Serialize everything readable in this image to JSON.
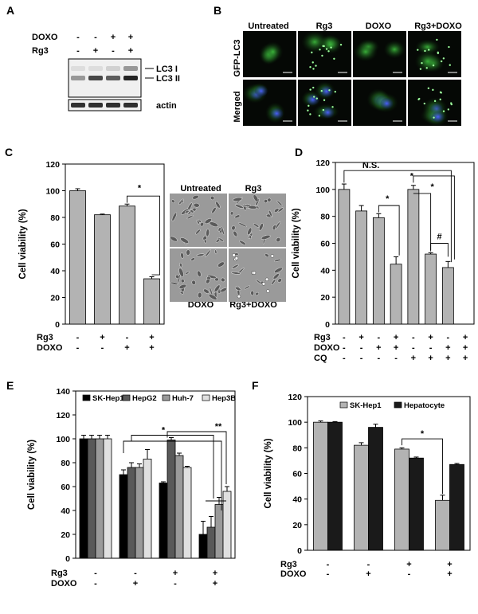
{
  "panels": {
    "A": {
      "letter": "A",
      "row_labels": [
        "DOXO",
        "Rg3"
      ],
      "treatments": [
        {
          "DOXO": "-",
          "Rg3": "-"
        },
        {
          "DOXO": "-",
          "Rg3": "+"
        },
        {
          "DOXO": "+",
          "Rg3": "-"
        },
        {
          "DOXO": "+",
          "Rg3": "+"
        }
      ],
      "band_labels": [
        "LC3 I",
        "LC3 II",
        "actin"
      ],
      "band_intensity": {
        "LC3 I": [
          0.15,
          0.15,
          0.2,
          0.45
        ],
        "LC3 II": [
          0.45,
          0.8,
          0.7,
          0.95
        ],
        "actin": [
          0.9,
          0.9,
          0.9,
          0.9
        ]
      }
    },
    "B": {
      "letter": "B",
      "column_labels": [
        "Untreated",
        "Rg3",
        "DOXO",
        "Rg3+DOXO"
      ],
      "row_labels": [
        "GFP-LC3",
        "Merged"
      ]
    },
    "C": {
      "letter": "C",
      "image_labels": [
        "Untreated",
        "Rg3",
        "DOXO",
        "Rg3+DOXO"
      ],
      "significance": [
        "*"
      ]
    },
    "D": {
      "letter": "D",
      "significance": [
        "N.S.",
        "*",
        "*",
        "*",
        "#"
      ]
    },
    "E": {
      "letter": "E",
      "significance": [
        "*",
        "**"
      ]
    },
    "F": {
      "letter": "F",
      "significance": [
        "*"
      ]
    }
  },
  "chart_data": [
    {
      "id": "C",
      "type": "bar",
      "ylabel": "Cell viability (%)",
      "ylim": [
        0,
        120
      ],
      "yticks": [
        0,
        20,
        40,
        60,
        80,
        100,
        120
      ],
      "treatment_rows": [
        {
          "label": "Rg3",
          "signs": [
            "-",
            "+",
            "-",
            "+"
          ]
        },
        {
          "label": "DOXO",
          "signs": [
            "-",
            "-",
            "+",
            "+"
          ]
        }
      ],
      "series": [
        {
          "values": [
            100,
            82,
            88.5,
            34
          ],
          "errors": [
            1.5,
            0.5,
            1.5,
            1.5
          ],
          "color": "#b3b3b3"
        }
      ]
    },
    {
      "id": "D",
      "type": "bar",
      "ylabel": "Cell viability (%)",
      "ylim": [
        0,
        120
      ],
      "yticks": [
        0,
        20,
        40,
        60,
        80,
        100,
        120
      ],
      "treatment_rows": [
        {
          "label": "Rg3",
          "signs": [
            "-",
            "+",
            "-",
            "+",
            "-",
            "+",
            "-",
            "+"
          ]
        },
        {
          "label": "DOXO",
          "signs": [
            "-",
            "-",
            "+",
            "+",
            "-",
            "-",
            "+",
            "+"
          ]
        },
        {
          "label": "CQ",
          "signs": [
            "-",
            "-",
            "-",
            "-",
            "+",
            "+",
            "+",
            "+"
          ]
        }
      ],
      "series": [
        {
          "values": [
            100,
            84,
            79,
            44.5,
            100,
            52,
            42,
            0
          ],
          "errors": [
            4,
            4,
            3,
            5.5,
            3,
            1,
            4.5,
            0
          ],
          "color": "#b3b3b3"
        }
      ]
    },
    {
      "id": "E",
      "type": "bar",
      "ylabel": "Cell viability (%)",
      "ylim": [
        0,
        140
      ],
      "yticks": [
        0,
        20,
        40,
        60,
        80,
        100,
        120,
        140
      ],
      "treatment_rows": [
        {
          "label": "Rg3",
          "signs": [
            "-",
            "-",
            "+",
            "+"
          ]
        },
        {
          "label": "DOXO",
          "signs": [
            "-",
            "+",
            "-",
            "+"
          ]
        }
      ],
      "series": [
        {
          "name": "SK-Hep1",
          "values": [
            100,
            70,
            63,
            20
          ],
          "errors": [
            3,
            4,
            1,
            11
          ],
          "color": "#000000"
        },
        {
          "name": "HepG2",
          "values": [
            100,
            76,
            99,
            26
          ],
          "errors": [
            3,
            4,
            2,
            9
          ],
          "color": "#595959"
        },
        {
          "name": "Huh-7",
          "values": [
            100,
            76,
            86,
            45
          ],
          "errors": [
            3,
            3,
            2,
            6
          ],
          "color": "#9a9a9a"
        },
        {
          "name": "Hep3B",
          "values": [
            100,
            83,
            76,
            56
          ],
          "errors": [
            3,
            8,
            1,
            4
          ],
          "color": "#e0e0e0"
        }
      ]
    },
    {
      "id": "F",
      "type": "bar",
      "ylabel": "Cell viability (%)",
      "ylim": [
        0,
        120
      ],
      "yticks": [
        0,
        20,
        40,
        60,
        80,
        100,
        120
      ],
      "treatment_rows": [
        {
          "label": "Rg3",
          "signs": [
            "-",
            "-",
            "+",
            "+"
          ]
        },
        {
          "label": "DOXO",
          "signs": [
            "-",
            "+",
            "-",
            "+"
          ]
        }
      ],
      "series": [
        {
          "name": "SK-Hep1",
          "values": [
            100,
            82,
            79,
            39
          ],
          "errors": [
            1,
            2,
            1,
            4
          ],
          "color": "#b3b3b3"
        },
        {
          "name": "Hepatocyte",
          "values": [
            100,
            96,
            72,
            67
          ],
          "errors": [
            0.5,
            2.5,
            0.8,
            0.8
          ],
          "color": "#1a1a1a"
        }
      ]
    }
  ]
}
